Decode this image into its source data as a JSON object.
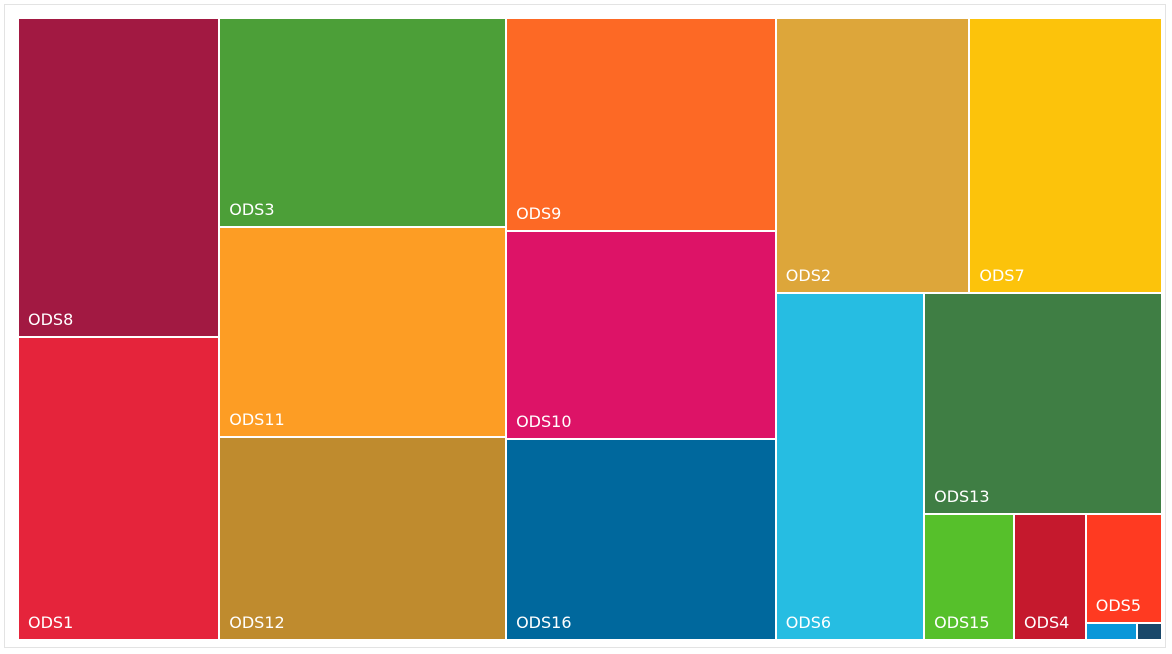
{
  "chart_data": {
    "type": "treemap",
    "categories": [
      "ODS8",
      "ODS1",
      "ODS3",
      "ODS11",
      "ODS12",
      "ODS9",
      "ODS10",
      "ODS16",
      "ODS2",
      "ODS7",
      "ODS6",
      "ODS13",
      "ODS15",
      "ODS4",
      "ODS5",
      null,
      null
    ],
    "values": [
      63800,
      60600,
      59565,
      59850,
      57855,
      57084,
      55744,
      53868,
      52882,
      52608,
      51156,
      52156,
      11303,
      9017,
      8284,
      864,
      432
    ],
    "colors": [
      "#a21942",
      "#e5243b",
      "#4c9f38",
      "#fd9d24",
      "#bf8b2e",
      "#fd6925",
      "#dd1367",
      "#00689d",
      "#dda63a",
      "#fcc30b",
      "#26bde2",
      "#3f7e44",
      "#56c02b",
      "#c5192d",
      "#ff3a21",
      "#0a97d9",
      "#19486a"
    ]
  }
}
